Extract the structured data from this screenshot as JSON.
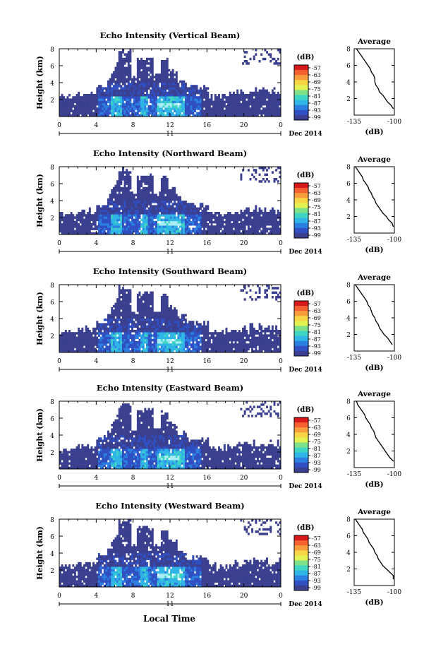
{
  "figure": {
    "xlabel_bottom": "Local Time"
  },
  "colorbar": {
    "unit": "(dB)",
    "tick_labels": [
      "-57",
      "-63",
      "-69",
      "-75",
      "-81",
      "-87",
      "-93",
      "-99"
    ],
    "colors": [
      "#d7191c",
      "#f4602f",
      "#f89d3b",
      "#f7d645",
      "#e3f252",
      "#7fe08a",
      "#3fd5c3",
      "#2fb5e6",
      "#2a7fe0",
      "#2f4fc2",
      "#3a3f8f"
    ]
  },
  "colors": {
    "background_echo": "#3a3f8f",
    "weak": "#2f4fc2",
    "mid": "#2a7fe0",
    "strong": "#2fb5e6",
    "peak": "#3fd5c3",
    "hot": "#a8ecf5"
  },
  "chart_data": [
    {
      "type": "heatmap",
      "title": "Echo Intensity (Vertical Beam)",
      "ylabel": "Height (km)",
      "xlim": [
        0,
        24
      ],
      "ylim": [
        0,
        8
      ],
      "xticks": [
        "0",
        "4",
        "8",
        "12",
        "16",
        "20",
        "0"
      ],
      "yticks": [
        "2",
        "4",
        "6",
        "8"
      ],
      "date_day": "11",
      "date_month": "Dec 2014",
      "average_profile": {
        "title": "Average",
        "xlabel": "(dB)",
        "xlim": [
          -135,
          -100
        ],
        "ylim": [
          0,
          8
        ],
        "xticks": [
          "-135",
          "-100"
        ],
        "yticks": [
          "2",
          "4",
          "6",
          "8"
        ],
        "heights": [
          0.8,
          1.2,
          1.6,
          2.0,
          2.4,
          2.8,
          3.2,
          3.6,
          4.0,
          4.4,
          4.8,
          5.2,
          5.6,
          6.0,
          6.4,
          6.8,
          7.2,
          7.6,
          8.0
        ],
        "values": [
          -101,
          -103,
          -106,
          -108,
          -110,
          -113,
          -114,
          -116,
          -117,
          -117,
          -118,
          -120,
          -121,
          -123,
          -125,
          -127,
          -129,
          -131,
          -133
        ]
      }
    },
    {
      "type": "heatmap",
      "title": "Echo Intensity (Northward Beam)",
      "ylabel": "Height (km)",
      "xlim": [
        0,
        24
      ],
      "ylim": [
        0,
        8
      ],
      "xticks": [
        "0",
        "4",
        "8",
        "12",
        "16",
        "20",
        "0"
      ],
      "yticks": [
        "2",
        "4",
        "6",
        "8"
      ],
      "date_day": "11",
      "date_month": "Dec 2014",
      "average_profile": {
        "title": "Average",
        "xlabel": "(dB)",
        "xlim": [
          -135,
          -100
        ],
        "ylim": [
          0,
          8
        ],
        "xticks": [
          "-135",
          "-100"
        ],
        "yticks": [
          "2",
          "4",
          "6",
          "8"
        ],
        "heights": [
          0.8,
          1.2,
          1.6,
          2.0,
          2.4,
          2.8,
          3.2,
          3.6,
          4.0,
          4.4,
          4.8,
          5.2,
          5.6,
          6.0,
          6.4,
          6.8,
          7.2,
          7.6,
          8.0
        ],
        "values": [
          -101,
          -102,
          -105,
          -107,
          -110,
          -112,
          -114,
          -116,
          -117,
          -119,
          -120,
          -122,
          -123,
          -125,
          -127,
          -128,
          -130,
          -132,
          -134
        ]
      }
    },
    {
      "type": "heatmap",
      "title": "Echo Intensity (Southward Beam)",
      "ylabel": "Height (km)",
      "xlim": [
        0,
        24
      ],
      "ylim": [
        0,
        8
      ],
      "xticks": [
        "0",
        "4",
        "8",
        "12",
        "16",
        "20",
        "0"
      ],
      "yticks": [
        "2",
        "4",
        "6",
        "8"
      ],
      "date_day": "11",
      "date_month": "Dec 2014",
      "average_profile": {
        "title": "Average",
        "xlabel": "(dB)",
        "xlim": [
          -135,
          -100
        ],
        "ylim": [
          0,
          8
        ],
        "xticks": [
          "-135",
          "-100"
        ],
        "yticks": [
          "2",
          "4",
          "6",
          "8"
        ],
        "heights": [
          0.8,
          1.2,
          1.6,
          2.0,
          2.4,
          2.8,
          3.2,
          3.6,
          4.0,
          4.4,
          4.8,
          5.2,
          5.6,
          6.0,
          6.4,
          6.8,
          7.2,
          7.6,
          8.0
        ],
        "values": [
          -102,
          -104,
          -106,
          -109,
          -111,
          -113,
          -114,
          -116,
          -117,
          -119,
          -120,
          -121,
          -123,
          -124,
          -126,
          -128,
          -130,
          -132,
          -134
        ]
      }
    },
    {
      "type": "heatmap",
      "title": "Echo Intensity (Eastward Beam)",
      "ylabel": "Height (km)",
      "xlim": [
        0,
        24
      ],
      "ylim": [
        0,
        8
      ],
      "xticks": [
        "0",
        "4",
        "8",
        "12",
        "16",
        "20",
        "0"
      ],
      "yticks": [
        "2",
        "4",
        "6",
        "8"
      ],
      "date_day": "11",
      "date_month": "Dec 2014",
      "average_profile": {
        "title": "Average",
        "xlabel": "(dB)",
        "xlim": [
          -135,
          -100
        ],
        "ylim": [
          0,
          8
        ],
        "xticks": [
          "-135",
          "-100"
        ],
        "yticks": [
          "2",
          "4",
          "6",
          "8"
        ],
        "heights": [
          0.8,
          1.2,
          1.6,
          2.0,
          2.4,
          2.8,
          3.2,
          3.6,
          4.0,
          4.4,
          4.8,
          5.2,
          5.6,
          6.0,
          6.4,
          6.8,
          7.2,
          7.6,
          8.0
        ],
        "values": [
          -101,
          -104,
          -106,
          -108,
          -110,
          -112,
          -114,
          -116,
          -117,
          -118,
          -120,
          -121,
          -123,
          -125,
          -126,
          -128,
          -130,
          -132,
          -133
        ]
      }
    },
    {
      "type": "heatmap",
      "title": "Echo Intensity (Westward Beam)",
      "ylabel": "Height (km)",
      "xlim": [
        0,
        24
      ],
      "ylim": [
        0,
        8
      ],
      "xticks": [
        "0",
        "4",
        "8",
        "12",
        "16",
        "20",
        "0"
      ],
      "yticks": [
        "2",
        "4",
        "6",
        "8"
      ],
      "date_day": "11",
      "date_month": "Dec 2014",
      "average_profile": {
        "title": "Average",
        "xlabel": "(dB)",
        "xlim": [
          -135,
          -100
        ],
        "ylim": [
          0,
          8
        ],
        "xticks": [
          "-135",
          "-100"
        ],
        "yticks": [
          "2",
          "4",
          "6",
          "8"
        ],
        "heights": [
          0.8,
          1.2,
          1.6,
          2.0,
          2.4,
          2.8,
          3.2,
          3.6,
          4.0,
          4.4,
          4.8,
          5.2,
          5.6,
          6.0,
          6.4,
          6.8,
          7.2,
          7.6,
          8.0
        ],
        "values": [
          -101,
          -101,
          -104,
          -107,
          -110,
          -112,
          -114,
          -115,
          -117,
          -118,
          -120,
          -122,
          -123,
          -125,
          -127,
          -128,
          -130,
          -132,
          -134
        ]
      }
    }
  ]
}
